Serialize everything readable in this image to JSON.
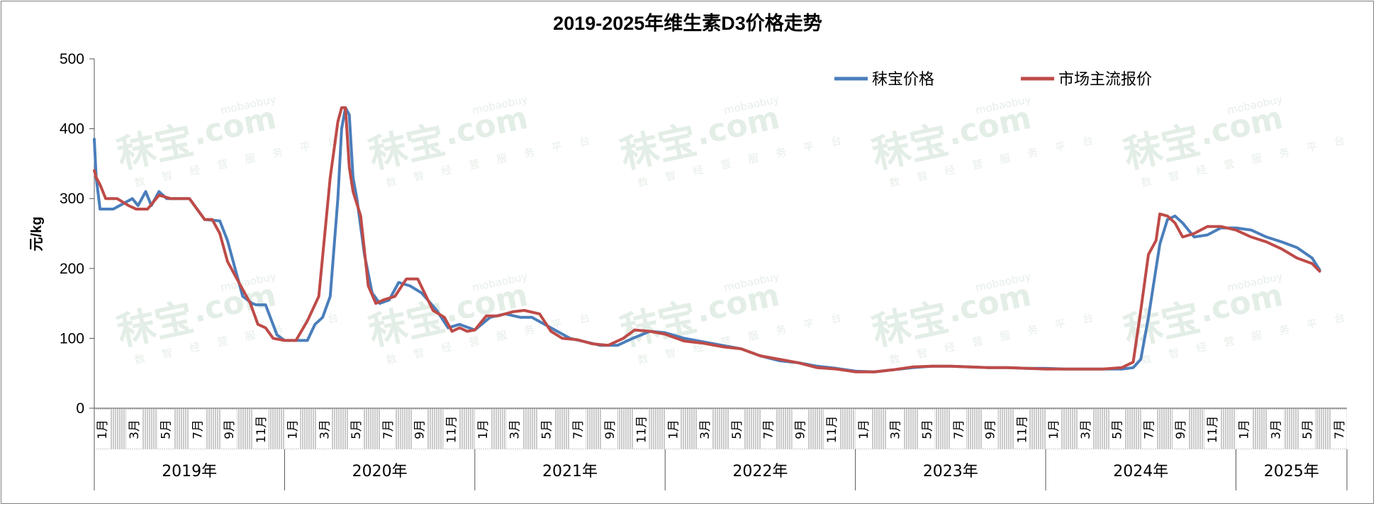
{
  "chart_data": {
    "type": "line",
    "title": "2019-2025年维生素D3价格走势",
    "ylabel": "元/kg",
    "ylim": [
      0,
      500
    ],
    "yticks": [
      0,
      100,
      200,
      300,
      400,
      500
    ],
    "grid": false,
    "legend_position": "top-right",
    "x_start": "2019-01",
    "x_end": "2025-07",
    "years": [
      "2019年",
      "2020年",
      "2021年",
      "2022年",
      "2023年",
      "2024年",
      "2025年"
    ],
    "month_labels": [
      "1月",
      "3月",
      "5月",
      "7月",
      "9月",
      "11月"
    ],
    "series": [
      {
        "name": "秣宝价格",
        "color": "#4a7ebb",
        "x": [
          2019.0,
          2019.01,
          2019.03,
          2019.1,
          2019.2,
          2019.23,
          2019.27,
          2019.3,
          2019.34,
          2019.38,
          2019.42,
          2019.5,
          2019.58,
          2019.66,
          2019.7,
          2019.74,
          2019.78,
          2019.83,
          2019.85,
          2019.9,
          2019.96,
          2020.0,
          2020.08,
          2020.12,
          2020.16,
          2020.2,
          2020.24,
          2020.28,
          2020.3,
          2020.32,
          2020.34,
          2020.36,
          2020.38,
          2020.42,
          2020.46,
          2020.5,
          2020.55,
          2020.6,
          2020.66,
          2020.72,
          2020.8,
          2020.86,
          2020.92,
          2021.0,
          2021.08,
          2021.16,
          2021.24,
          2021.3,
          2021.4,
          2021.5,
          2021.58,
          2021.66,
          2021.75,
          2021.83,
          2021.92,
          2022.0,
          2022.1,
          2022.2,
          2022.3,
          2022.4,
          2022.5,
          2022.6,
          2022.7,
          2022.8,
          2022.9,
          2023.0,
          2023.1,
          2023.2,
          2023.3,
          2023.4,
          2023.5,
          2023.6,
          2023.7,
          2023.8,
          2023.9,
          2024.0,
          2024.1,
          2024.2,
          2024.3,
          2024.4,
          2024.46,
          2024.5,
          2024.54,
          2024.58,
          2024.6,
          2024.64,
          2024.68,
          2024.72,
          2024.78,
          2024.85,
          2024.92,
          2025.0,
          2025.08,
          2025.16,
          2025.24,
          2025.32,
          2025.4,
          2025.44
        ],
        "values": [
          385,
          330,
          285,
          285,
          300,
          290,
          310,
          290,
          310,
          300,
          300,
          300,
          270,
          268,
          240,
          200,
          160,
          150,
          148,
          148,
          105,
          97,
          97,
          97,
          120,
          130,
          160,
          300,
          400,
          430,
          420,
          330,
          300,
          220,
          165,
          150,
          155,
          180,
          175,
          165,
          140,
          115,
          120,
          112,
          130,
          135,
          130,
          130,
          115,
          100,
          95,
          90,
          90,
          100,
          110,
          108,
          100,
          95,
          90,
          85,
          75,
          68,
          65,
          60,
          57,
          53,
          52,
          55,
          58,
          60,
          60,
          59,
          58,
          58,
          57,
          57,
          56,
          56,
          56,
          56,
          58,
          70,
          130,
          200,
          235,
          270,
          275,
          265,
          245,
          248,
          258,
          258,
          255,
          245,
          238,
          230,
          215,
          198
        ]
      },
      {
        "name": "市场主流报价",
        "color": "#be4b48",
        "x": [
          2019.0,
          2019.01,
          2019.03,
          2019.06,
          2019.12,
          2019.18,
          2019.22,
          2019.28,
          2019.34,
          2019.4,
          2019.44,
          2019.5,
          2019.58,
          2019.62,
          2019.66,
          2019.7,
          2019.74,
          2019.78,
          2019.82,
          2019.86,
          2019.9,
          2019.94,
          2020.0,
          2020.06,
          2020.12,
          2020.18,
          2020.24,
          2020.28,
          2020.3,
          2020.32,
          2020.34,
          2020.36,
          2020.4,
          2020.44,
          2020.48,
          2020.52,
          2020.58,
          2020.64,
          2020.7,
          2020.78,
          2020.84,
          2020.88,
          2020.92,
          2020.96,
          2021.0,
          2021.06,
          2021.12,
          2021.2,
          2021.26,
          2021.34,
          2021.4,
          2021.46,
          2021.54,
          2021.62,
          2021.7,
          2021.78,
          2021.84,
          2021.92,
          2022.0,
          2022.1,
          2022.2,
          2022.3,
          2022.4,
          2022.5,
          2022.6,
          2022.7,
          2022.8,
          2022.9,
          2023.0,
          2023.1,
          2023.2,
          2023.3,
          2023.4,
          2023.5,
          2023.6,
          2023.7,
          2023.8,
          2023.9,
          2024.0,
          2024.1,
          2024.2,
          2024.3,
          2024.4,
          2024.46,
          2024.5,
          2024.54,
          2024.58,
          2024.6,
          2024.64,
          2024.68,
          2024.72,
          2024.78,
          2024.85,
          2024.92,
          2025.0,
          2025.08,
          2025.16,
          2025.24,
          2025.32,
          2025.4,
          2025.44
        ],
        "values": [
          340,
          330,
          320,
          300,
          300,
          290,
          285,
          285,
          305,
          300,
          300,
          300,
          270,
          270,
          250,
          210,
          190,
          170,
          150,
          120,
          115,
          100,
          97,
          97,
          125,
          160,
          330,
          410,
          430,
          430,
          345,
          310,
          275,
          175,
          150,
          155,
          160,
          185,
          185,
          140,
          130,
          110,
          115,
          110,
          112,
          132,
          132,
          138,
          140,
          135,
          110,
          100,
          98,
          92,
          90,
          100,
          112,
          110,
          106,
          96,
          93,
          88,
          85,
          75,
          70,
          65,
          58,
          56,
          52,
          52,
          55,
          59,
          60,
          60,
          59,
          58,
          58,
          57,
          56,
          56,
          56,
          56,
          58,
          66,
          140,
          220,
          240,
          278,
          275,
          265,
          245,
          250,
          260,
          260,
          255,
          245,
          238,
          228,
          215,
          207,
          196
        ]
      }
    ]
  }
}
